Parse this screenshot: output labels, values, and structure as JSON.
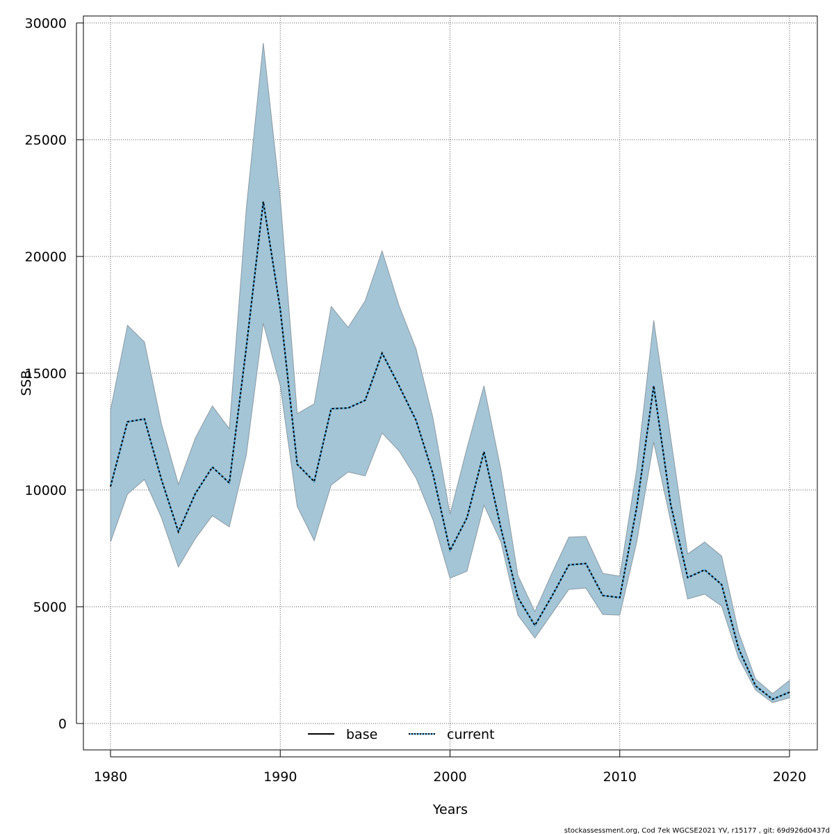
{
  "chart_data": {
    "type": "area",
    "xlabel": "Years",
    "ylabel": "SSB",
    "xlim": [
      1978.4,
      2021.6
    ],
    "ylim": [
      -1150,
      30300
    ],
    "xticks": [
      1980,
      1990,
      2000,
      2010,
      2020
    ],
    "yticks": [
      0,
      5000,
      10000,
      15000,
      20000,
      25000,
      30000
    ],
    "grid": true,
    "legend_position": "bottom-center",
    "colors": {
      "band": "#a4c5d6",
      "band_edge": "#8a9aa3",
      "base": "#000000",
      "current": "#56b4e9",
      "grid": "#555555"
    },
    "x": [
      1980,
      1981,
      1982,
      1983,
      1984,
      1985,
      1986,
      1987,
      1988,
      1989,
      1990,
      1991,
      1992,
      1993,
      1994,
      1995,
      1996,
      1997,
      1998,
      1999,
      2000,
      2001,
      2002,
      2003,
      2004,
      2005,
      2006,
      2007,
      2008,
      2009,
      2010,
      2011,
      2012,
      2013,
      2014,
      2015,
      2016,
      2017,
      2018,
      2019,
      2020
    ],
    "upper": [
      13420,
      17050,
      16340,
      12830,
      10240,
      12230,
      13600,
      12620,
      22050,
      29140,
      22500,
      13270,
      13690,
      17860,
      16960,
      18100,
      20240,
      17890,
      16040,
      13070,
      8960,
      11800,
      14460,
      10860,
      6340,
      4790,
      6430,
      7980,
      8010,
      6430,
      6310,
      10890,
      17260,
      12230,
      7260,
      7770,
      7170,
      3900,
      1900,
      1280,
      1850
    ],
    "lower": [
      7770,
      9820,
      10450,
      8810,
      6700,
      7920,
      8900,
      8420,
      11490,
      17140,
      14460,
      9290,
      7830,
      10210,
      10770,
      10600,
      12440,
      11670,
      10510,
      8720,
      6220,
      6520,
      9350,
      7770,
      4640,
      3660,
      4700,
      5740,
      5800,
      4670,
      4640,
      7770,
      12050,
      8660,
      5330,
      5540,
      5030,
      2800,
      1430,
      890,
      1100
    ],
    "series": [
      {
        "name": "base",
        "style": "solid",
        "values": [
          10150,
          12920,
          13040,
          10450,
          8210,
          9850,
          10980,
          10300,
          16100,
          22350,
          17740,
          11100,
          10360,
          13480,
          13510,
          13840,
          15860,
          14460,
          12980,
          10680,
          7410,
          8810,
          11640,
          8360,
          5390,
          4200,
          5450,
          6790,
          6850,
          5480,
          5390,
          9260,
          14460,
          9380,
          6250,
          6580,
          5950,
          3210,
          1610,
          1040,
          1340
        ]
      },
      {
        "name": "current",
        "style": "dotted",
        "values": [
          10150,
          12920,
          13040,
          10450,
          8210,
          9850,
          10980,
          10300,
          16100,
          22350,
          17740,
          11100,
          10360,
          13480,
          13510,
          13840,
          15860,
          14460,
          12980,
          10680,
          7410,
          8810,
          11640,
          8360,
          5390,
          4200,
          5450,
          6790,
          6850,
          5480,
          5390,
          9260,
          14460,
          9380,
          6250,
          6580,
          5950,
          3210,
          1610,
          1040,
          1340
        ]
      }
    ]
  },
  "footer": "stockassessment.org, Cod  7ek  WGCSE2021  YV, r15177 , git: 69d926d0437d"
}
